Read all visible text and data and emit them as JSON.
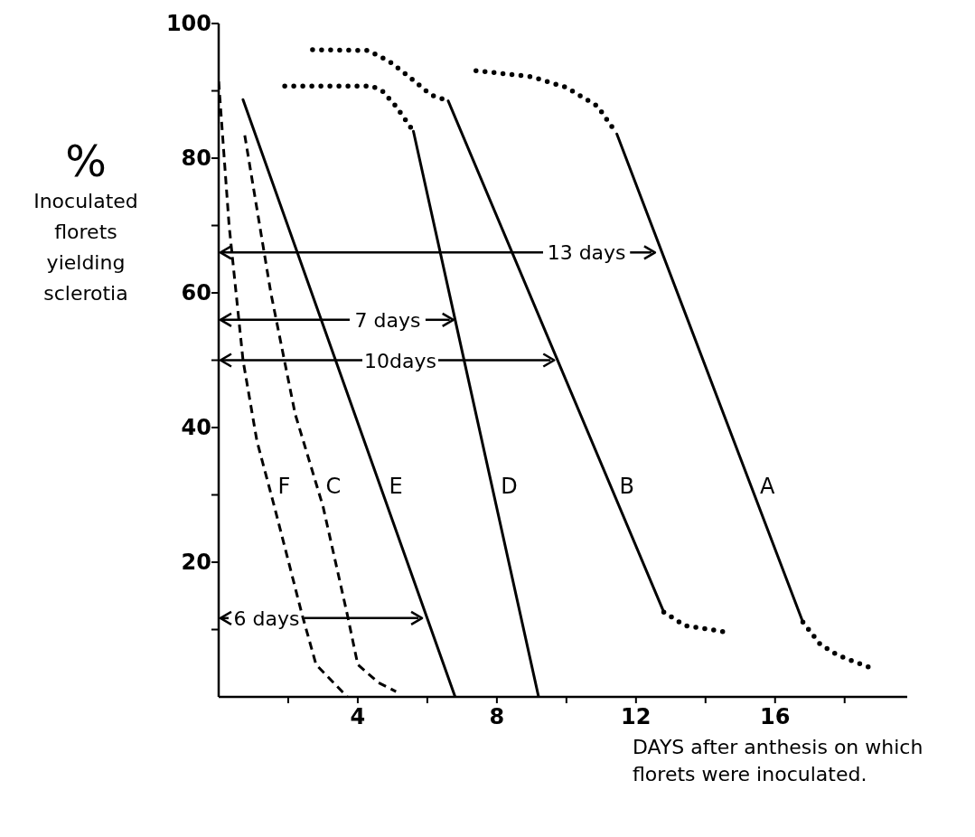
{
  "chart_data": {
    "type": "line",
    "ylabel": "% Inoculated florets yielding sclerotia",
    "xlabel": "DAYS after anthesis on which florets were inoculated.",
    "xlim": [
      0,
      19.8
    ],
    "ylim": [
      0,
      100
    ],
    "xticks": [
      {
        "value": 2,
        "label": null
      },
      4,
      {
        "value": 6,
        "label": null
      },
      8,
      {
        "value": 10,
        "label": null
      },
      12,
      {
        "value": 14,
        "label": null
      },
      16,
      {
        "value": 18,
        "label": null
      }
    ],
    "yticks": [
      {
        "value": 10,
        "label": null
      },
      20,
      {
        "value": 30,
        "label": null
      },
      40,
      {
        "value": 50,
        "label": null
      },
      60,
      {
        "value": 70,
        "label": null
      },
      80,
      {
        "value": 90,
        "label": null
      },
      100
    ],
    "series": [
      {
        "name": "F",
        "color": "#000000",
        "line_style": "dashed",
        "x": [
          0,
          0.3,
          0.7,
          1.1,
          1.6,
          2.4,
          2.8,
          3.7
        ],
        "values": [
          91.4,
          70,
          50,
          38,
          28.3,
          12.2,
          4.8,
          0
        ]
      },
      {
        "name": "C",
        "color": "#000000",
        "line_style": "dashed",
        "x": [
          0.75,
          1.5,
          2.2,
          3.0,
          3.7,
          4.0,
          4.6,
          5.1
        ],
        "values": [
          83.4,
          60,
          42,
          28.3,
          12.2,
          4.8,
          2.1,
          0.8
        ]
      },
      {
        "name": "E",
        "color": "#000000",
        "line_style": "solid",
        "x": [
          0.7,
          6.8
        ],
        "values": [
          88.7,
          0
        ]
      },
      {
        "color": "#000000",
        "line_style": "dotted",
        "x": [
          1.9,
          4.4,
          4.7,
          5.1,
          5.6
        ],
        "values": [
          90.7,
          90.7,
          90,
          87.7,
          84
        ]
      },
      {
        "name": "D",
        "color": "#000000",
        "line_style": "solid",
        "x": [
          5.6,
          9.2
        ],
        "values": [
          84,
          0
        ]
      },
      {
        "color": "#000000",
        "line_style": "dotted",
        "x": [
          2.7,
          4.3,
          4.9,
          5.5,
          6.1,
          6.6
        ],
        "values": [
          96.1,
          96,
          94.4,
          92,
          89.4,
          88.5
        ]
      },
      {
        "name": "B",
        "color": "#000000",
        "line_style": "solid",
        "x": [
          6.6,
          12.8
        ],
        "values": [
          88.5,
          12.6
        ]
      },
      {
        "color": "#000000",
        "line_style": "dotted",
        "x": [
          12.8,
          13.4,
          14.5
        ],
        "values": [
          12.6,
          10.6,
          9.7
        ]
      },
      {
        "color": "#000000",
        "line_style": "dotted",
        "x": [
          7.4,
          9,
          10,
          10.9,
          11.45
        ],
        "values": [
          93,
          92.1,
          90.5,
          87.7,
          83.6
        ]
      },
      {
        "name": "A",
        "color": "#000000",
        "line_style": "solid",
        "x": [
          11.45,
          16.8
        ],
        "values": [
          83.6,
          11.1
        ]
      },
      {
        "color": "#000000",
        "line_style": "dotted",
        "x": [
          16.8,
          17.3,
          17.8,
          18.7
        ],
        "values": [
          11.1,
          7.8,
          6.2,
          4.4
        ]
      }
    ],
    "annotations": [
      {
        "text": "13 days",
        "x": 12.6,
        "y": 66
      },
      {
        "text": "7 days",
        "x": 6.8,
        "y": 56
      },
      {
        "text": "10days",
        "x": 9.7,
        "y": 50
      },
      {
        "text": "6 days",
        "x": 5.9,
        "y": 11.7
      }
    ]
  }
}
